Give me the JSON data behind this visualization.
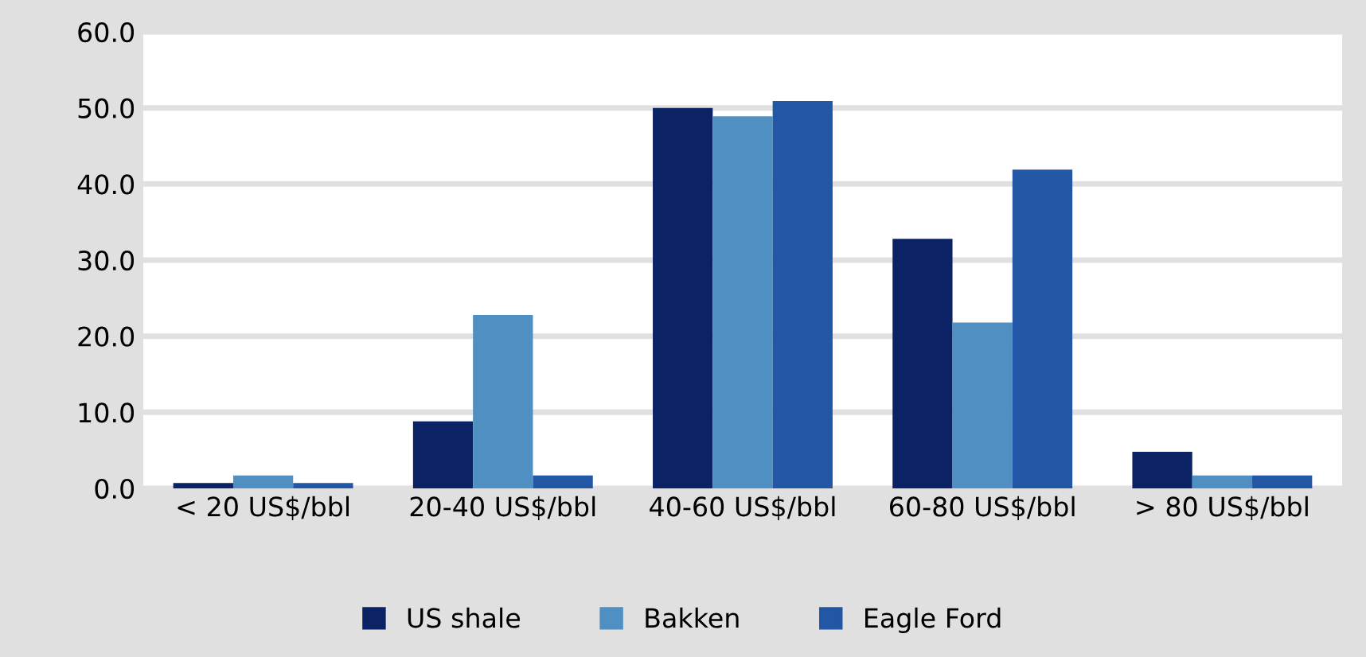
{
  "chart_data": {
    "type": "bar",
    "categories": [
      "< 20 US$/bbl",
      "20-40 US$/bbl",
      "40-60 US$/bbl",
      "60-80 US$/bbl",
      "> 80 US$/bbl"
    ],
    "series": [
      {
        "name": "US shale",
        "color": "#0b2265",
        "values": [
          0.7,
          8.8,
          50.0,
          32.8,
          4.8
        ]
      },
      {
        "name": "Bakken",
        "color": "#4f8fc2",
        "values": [
          1.7,
          22.8,
          48.9,
          21.8,
          1.7
        ]
      },
      {
        "name": "Eagle Ford",
        "color": "#2357a5",
        "values": [
          0.7,
          1.7,
          50.9,
          41.9,
          1.7
        ]
      }
    ],
    "ylim": [
      0,
      60
    ],
    "yticks": [
      {
        "value": 0,
        "label": "0.0"
      },
      {
        "value": 10,
        "label": "10.0"
      },
      {
        "value": 20,
        "label": "20.0"
      },
      {
        "value": 30,
        "label": "30.0"
      },
      {
        "value": 40,
        "label": "40.0"
      },
      {
        "value": 50,
        "label": "50.0"
      },
      {
        "value": 60,
        "label": "60.0"
      }
    ],
    "grid": "y",
    "legend": "bottom"
  }
}
